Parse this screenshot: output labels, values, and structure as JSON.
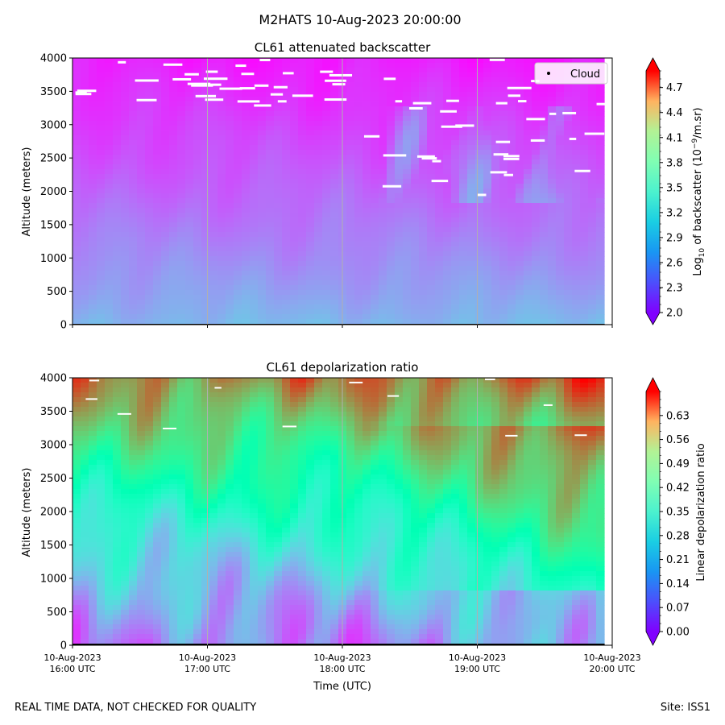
{
  "figure": {
    "suptitle": "M2HATS 10-Aug-2023 20:00:00",
    "footer_left": "REAL TIME DATA, NOT CHECKED FOR QUALITY",
    "footer_right": "Site: ISS1"
  },
  "chart_data": [
    {
      "type": "heatmap",
      "title": "CL61 attenuated backscatter",
      "ylabel": "Altitude (meters)",
      "xlabel": "",
      "ylim": [
        0,
        4000
      ],
      "yticks": [
        0,
        500,
        1000,
        1500,
        2000,
        2500,
        3000,
        3500,
        4000
      ],
      "xlim_hours_utc": [
        16,
        20
      ],
      "xticks_hours": [
        16,
        17,
        18,
        19,
        20
      ],
      "xtick_labels": [],
      "vertical_gridlines": true,
      "legend": {
        "entries": [
          "Cloud"
        ],
        "placement": "top-right"
      },
      "colorbar": {
        "label_main": "Log",
        "label_sub": "10",
        "label_mid": " of backscatter (10",
        "label_sup": "−9",
        "label_end": "/m.sr)",
        "range": [
          2.0,
          4.9
        ],
        "ticks": [
          "2.0",
          "2.3",
          "2.6",
          "2.9",
          "3.2",
          "3.5",
          "3.8",
          "4.1",
          "4.4",
          "4.7"
        ],
        "extend": "both",
        "colormap": "rainbow"
      },
      "field_description": {
        "near_surface_value": 2.75,
        "upper_level_value": 2.1,
        "cloud_top_altitude_late": 3000,
        "colored_patches_altitude_range": [
          1800,
          3300
        ]
      }
    },
    {
      "type": "heatmap",
      "title": "CL61 depolarization ratio",
      "ylabel": "Altitude (meters)",
      "xlabel": "Time (UTC)",
      "ylim": [
        0,
        4000
      ],
      "yticks": [
        0,
        500,
        1000,
        1500,
        2000,
        2500,
        3000,
        3500,
        4000
      ],
      "xlim_hours_utc": [
        16,
        20
      ],
      "xticks_hours": [
        16,
        17,
        18,
        19,
        20
      ],
      "xtick_labels": [
        [
          "10-Aug-2023",
          "16:00 UTC"
        ],
        [
          "10-Aug-2023",
          "17:00 UTC"
        ],
        [
          "10-Aug-2023",
          "18:00 UTC"
        ],
        [
          "10-Aug-2023",
          "19:00 UTC"
        ],
        [
          "10-Aug-2023",
          "20:00 UTC"
        ]
      ],
      "vertical_gridlines": true,
      "colorbar": {
        "label": "Linear depolarization ratio",
        "range": [
          0.0,
          0.7
        ],
        "ticks": [
          "0.00",
          "0.07",
          "0.14",
          "0.21",
          "0.28",
          "0.35",
          "0.42",
          "0.49",
          "0.56",
          "0.63"
        ],
        "extend": "both",
        "colormap": "rainbow"
      },
      "field_description": {
        "near_surface_value": 0.12,
        "upper_level_value": 0.58,
        "mid_level_value": 0.35
      }
    }
  ]
}
